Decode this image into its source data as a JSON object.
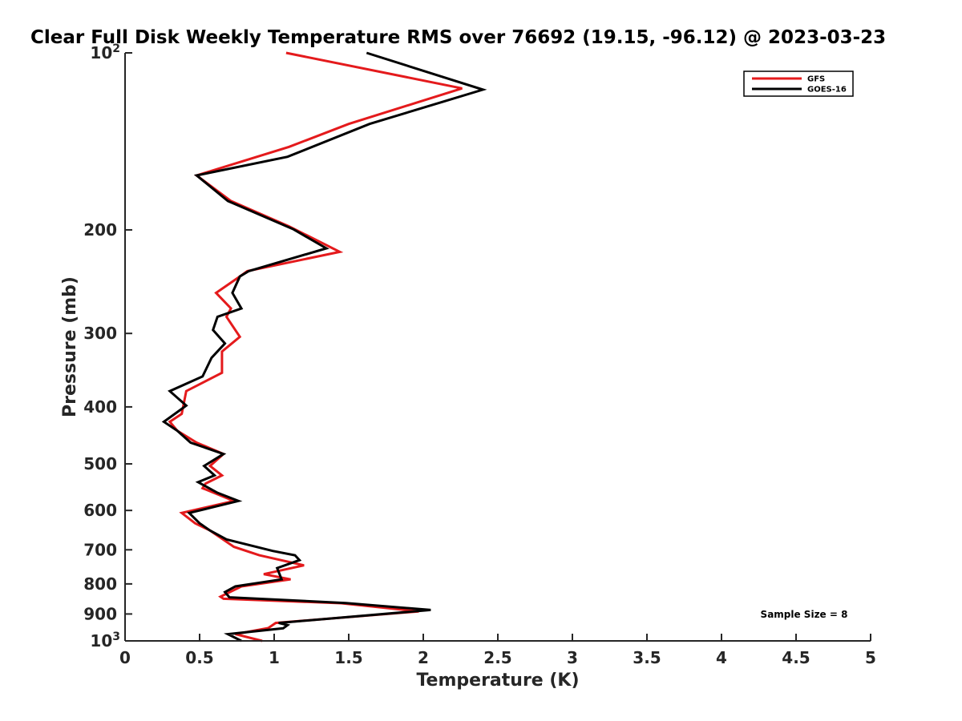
{
  "chart_data": {
    "type": "line",
    "title": "Clear Full Disk Weekly Temperature RMS over 76692 (19.15, -96.12) @ 2023-03-23",
    "xlabel": "Temperature (K)",
    "ylabel": "Pressure (mb)",
    "xlim": [
      0,
      5
    ],
    "ylim": [
      100,
      1000
    ],
    "y_scale": "log",
    "y_reversed": true,
    "x_ticks": [
      "0",
      "0.5",
      "1",
      "1.5",
      "2",
      "2.5",
      "3",
      "3.5",
      "4",
      "4.5",
      "5"
    ],
    "y_ticks": [
      {
        "value": 100,
        "base": "10",
        "exp": "2"
      },
      {
        "value": 200,
        "label": "200"
      },
      {
        "value": 300,
        "label": "300"
      },
      {
        "value": 400,
        "label": "400"
      },
      {
        "value": 500,
        "label": "500"
      },
      {
        "value": 600,
        "label": "600"
      },
      {
        "value": 700,
        "label": "700"
      },
      {
        "value": 800,
        "label": "800"
      },
      {
        "value": 900,
        "label": "900"
      },
      {
        "value": 1000,
        "base": "10",
        "exp": "3"
      }
    ],
    "grid": false,
    "legend_position": "top-right",
    "annotation": "Sample Size = 8",
    "series": [
      {
        "name": "GFS",
        "color": "#e41a1c",
        "points": [
          [
            1.08,
            100
          ],
          [
            2.26,
            114.9
          ],
          [
            1.5,
            132.1
          ],
          [
            1.1,
            144.5
          ],
          [
            0.48,
            161.6
          ],
          [
            0.71,
            178.6
          ],
          [
            1.1,
            197.3
          ],
          [
            1.44,
            218
          ],
          [
            0.82,
            235
          ],
          [
            0.77,
            240
          ],
          [
            0.61,
            256
          ],
          [
            0.71,
            272
          ],
          [
            0.68,
            281
          ],
          [
            0.77,
            304
          ],
          [
            0.65,
            322
          ],
          [
            0.65,
            350
          ],
          [
            0.41,
            376
          ],
          [
            0.38,
            411
          ],
          [
            0.3,
            424
          ],
          [
            0.35,
            439
          ],
          [
            0.48,
            460
          ],
          [
            0.66,
            481
          ],
          [
            0.57,
            504
          ],
          [
            0.65,
            523
          ],
          [
            0.54,
            540
          ],
          [
            0.52,
            550
          ],
          [
            0.73,
            578
          ],
          [
            0.38,
            606
          ],
          [
            0.47,
            631
          ],
          [
            0.57,
            649
          ],
          [
            0.73,
            692
          ],
          [
            0.9,
            715
          ],
          [
            1.2,
            744
          ],
          [
            0.93,
            770
          ],
          [
            1.11,
            786
          ],
          [
            0.78,
            808
          ],
          [
            0.64,
            841
          ],
          [
            0.66,
            848
          ],
          [
            1.45,
            863
          ],
          [
            1.97,
            891
          ],
          [
            1.01,
            932
          ],
          [
            0.96,
            951
          ],
          [
            0.74,
            974
          ],
          [
            0.92,
            1000
          ]
        ]
      },
      {
        "name": "GOES-16",
        "color": "#000000",
        "points": [
          [
            1.62,
            100
          ],
          [
            2.4,
            115.5
          ],
          [
            1.64,
            132.1
          ],
          [
            1.09,
            150.2
          ],
          [
            0.48,
            161.6
          ],
          [
            0.69,
            178.6
          ],
          [
            1.13,
            199.6
          ],
          [
            1.35,
            215
          ],
          [
            0.83,
            235
          ],
          [
            0.77,
            240
          ],
          [
            0.72,
            256
          ],
          [
            0.78,
            272
          ],
          [
            0.62,
            281
          ],
          [
            0.59,
            296
          ],
          [
            0.67,
            312
          ],
          [
            0.58,
            330
          ],
          [
            0.52,
            355
          ],
          [
            0.3,
            376
          ],
          [
            0.41,
            398
          ],
          [
            0.26,
            424
          ],
          [
            0.35,
            439
          ],
          [
            0.44,
            460
          ],
          [
            0.66,
            481
          ],
          [
            0.53,
            504
          ],
          [
            0.6,
            523
          ],
          [
            0.49,
            537
          ],
          [
            0.62,
            560
          ],
          [
            0.76,
            578
          ],
          [
            0.43,
            606
          ],
          [
            0.5,
            631
          ],
          [
            0.57,
            649
          ],
          [
            0.68,
            672
          ],
          [
            0.99,
            703
          ],
          [
            1.14,
            715
          ],
          [
            1.17,
            729
          ],
          [
            1.02,
            752
          ],
          [
            1.05,
            786
          ],
          [
            0.74,
            808
          ],
          [
            0.67,
            826
          ],
          [
            0.7,
            843
          ],
          [
            1.48,
            862
          ],
          [
            2.05,
            886
          ],
          [
            1.03,
            932
          ],
          [
            1.09,
            940
          ],
          [
            1.06,
            952
          ],
          [
            0.69,
            974
          ],
          [
            0.78,
            1000
          ]
        ]
      }
    ]
  }
}
